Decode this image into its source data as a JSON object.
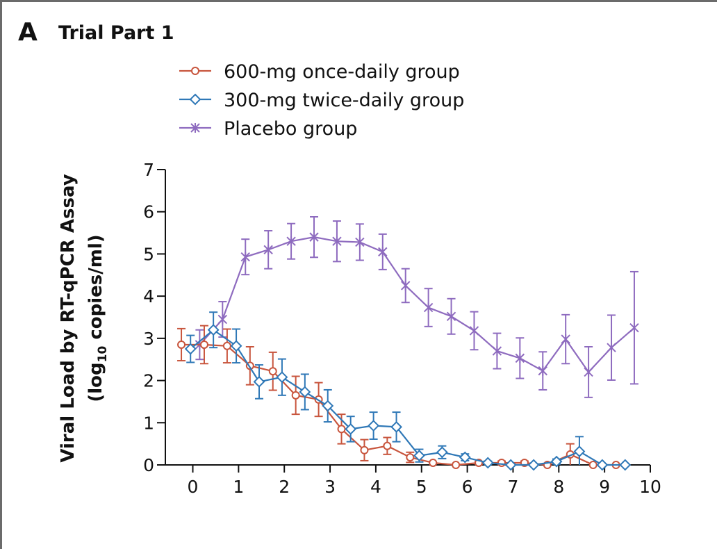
{
  "panel": {
    "letter": "A",
    "title": "Trial Part 1"
  },
  "chart_data": {
    "type": "line",
    "ylabel_line1": "Viral Load by RT-qPCR Assay",
    "ylabel_line2_pre": "(log",
    "ylabel_line2_sub": "10",
    "ylabel_line2_post": " copies/ml)",
    "xlabel": "",
    "xlim": [
      -0.6,
      10
    ],
    "ylim": [
      0,
      7
    ],
    "xticks": [
      0,
      1,
      2,
      3,
      4,
      5,
      6,
      7,
      8,
      9,
      10
    ],
    "yticks": [
      0,
      1,
      2,
      3,
      4,
      5,
      6,
      7
    ],
    "grid": false,
    "legend_position": "top-center",
    "series": [
      {
        "name": "600-mg once-daily group",
        "color": "#c8553d",
        "marker": "circle",
        "points": [
          {
            "x": -0.25,
            "y": 2.85,
            "err": 0.38
          },
          {
            "x": 0.25,
            "y": 2.85,
            "err": 0.45
          },
          {
            "x": 0.75,
            "y": 2.82,
            "err": 0.4
          },
          {
            "x": 1.25,
            "y": 2.35,
            "err": 0.45
          },
          {
            "x": 1.75,
            "y": 2.22,
            "err": 0.45
          },
          {
            "x": 2.25,
            "y": 1.65,
            "err": 0.45
          },
          {
            "x": 2.75,
            "y": 1.55,
            "err": 0.4
          },
          {
            "x": 3.25,
            "y": 0.85,
            "err": 0.35
          },
          {
            "x": 3.75,
            "y": 0.35,
            "err": 0.25
          },
          {
            "x": 4.25,
            "y": 0.45,
            "err": 0.2
          },
          {
            "x": 4.75,
            "y": 0.18,
            "err": 0.12
          },
          {
            "x": 5.25,
            "y": 0.05,
            "err": 0.0
          },
          {
            "x": 5.75,
            "y": 0.0,
            "err": 0.0
          },
          {
            "x": 6.25,
            "y": 0.05,
            "err": 0.03
          },
          {
            "x": 6.75,
            "y": 0.05,
            "err": 0.04
          },
          {
            "x": 7.25,
            "y": 0.05,
            "err": 0.04
          },
          {
            "x": 7.75,
            "y": 0.0,
            "err": 0.0
          },
          {
            "x": 8.25,
            "y": 0.25,
            "err": 0.25
          },
          {
            "x": 8.75,
            "y": 0.0,
            "err": 0.0
          },
          {
            "x": 9.25,
            "y": 0.0,
            "err": 0.0
          }
        ]
      },
      {
        "name": "300-mg twice-daily group",
        "color": "#2f78b7",
        "marker": "diamond",
        "points": [
          {
            "x": -0.05,
            "y": 2.75,
            "err": 0.32
          },
          {
            "x": 0.45,
            "y": 3.2,
            "err": 0.42
          },
          {
            "x": 0.95,
            "y": 2.82,
            "err": 0.4
          },
          {
            "x": 1.45,
            "y": 1.97,
            "err": 0.4
          },
          {
            "x": 1.95,
            "y": 2.08,
            "err": 0.43
          },
          {
            "x": 2.45,
            "y": 1.73,
            "err": 0.42
          },
          {
            "x": 2.95,
            "y": 1.4,
            "err": 0.38
          },
          {
            "x": 3.45,
            "y": 0.85,
            "err": 0.3
          },
          {
            "x": 3.95,
            "y": 0.93,
            "err": 0.32
          },
          {
            "x": 4.45,
            "y": 0.9,
            "err": 0.35
          },
          {
            "x": 4.95,
            "y": 0.22,
            "err": 0.15
          },
          {
            "x": 5.45,
            "y": 0.3,
            "err": 0.15
          },
          {
            "x": 5.95,
            "y": 0.18,
            "err": 0.08
          },
          {
            "x": 6.45,
            "y": 0.05,
            "err": 0.04
          },
          {
            "x": 6.95,
            "y": 0.0,
            "err": 0.0
          },
          {
            "x": 7.45,
            "y": 0.0,
            "err": 0.0
          },
          {
            "x": 7.95,
            "y": 0.08,
            "err": 0.06
          },
          {
            "x": 8.45,
            "y": 0.32,
            "err": 0.35
          },
          {
            "x": 8.95,
            "y": 0.0,
            "err": 0.0
          },
          {
            "x": 9.45,
            "y": 0.0,
            "err": 0.0
          }
        ]
      },
      {
        "name": "Placebo group",
        "color": "#8e6bbf",
        "marker": "star",
        "points": [
          {
            "x": 0.15,
            "y": 2.85,
            "err": 0.35
          },
          {
            "x": 0.65,
            "y": 3.45,
            "err": 0.42
          },
          {
            "x": 1.15,
            "y": 4.93,
            "err": 0.42
          },
          {
            "x": 1.65,
            "y": 5.1,
            "err": 0.45
          },
          {
            "x": 2.15,
            "y": 5.3,
            "err": 0.42
          },
          {
            "x": 2.65,
            "y": 5.4,
            "err": 0.48
          },
          {
            "x": 3.15,
            "y": 5.3,
            "err": 0.48
          },
          {
            "x": 3.65,
            "y": 5.28,
            "err": 0.43
          },
          {
            "x": 4.15,
            "y": 5.05,
            "err": 0.42
          },
          {
            "x": 4.65,
            "y": 4.25,
            "err": 0.4
          },
          {
            "x": 5.15,
            "y": 3.73,
            "err": 0.45
          },
          {
            "x": 5.65,
            "y": 3.52,
            "err": 0.42
          },
          {
            "x": 6.15,
            "y": 3.18,
            "err": 0.45
          },
          {
            "x": 6.65,
            "y": 2.7,
            "err": 0.42
          },
          {
            "x": 7.15,
            "y": 2.53,
            "err": 0.48
          },
          {
            "x": 7.65,
            "y": 2.23,
            "err": 0.45
          },
          {
            "x": 8.15,
            "y": 2.98,
            "err": 0.58
          },
          {
            "x": 8.65,
            "y": 2.2,
            "err": 0.6
          },
          {
            "x": 9.15,
            "y": 2.78,
            "err": 0.77
          },
          {
            "x": 9.65,
            "y": 3.25,
            "err": 1.33
          }
        ]
      }
    ]
  }
}
